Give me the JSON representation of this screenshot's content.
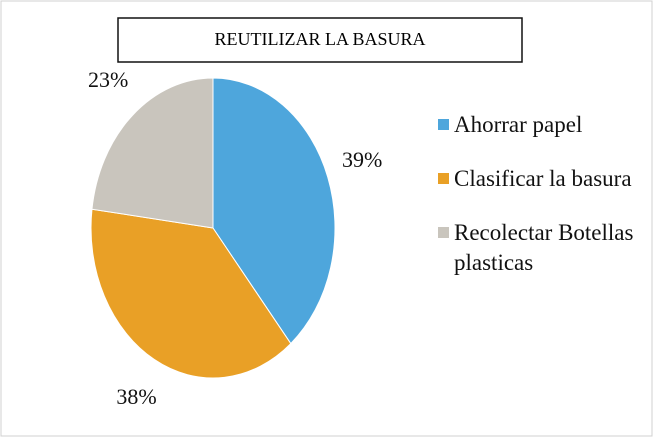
{
  "chart_data": {
    "type": "pie",
    "title": "REUTILIZAR LA BASURA",
    "categories": [
      "Ahorrar papel",
      "Clasificar la basura",
      "Recolectar Botellas plasticas"
    ],
    "values": [
      39,
      38,
      23
    ],
    "value_labels": [
      "39%",
      "38%",
      "23%"
    ],
    "colors": [
      "#4ea6dc",
      "#e9a026",
      "#c9c5bd"
    ]
  }
}
